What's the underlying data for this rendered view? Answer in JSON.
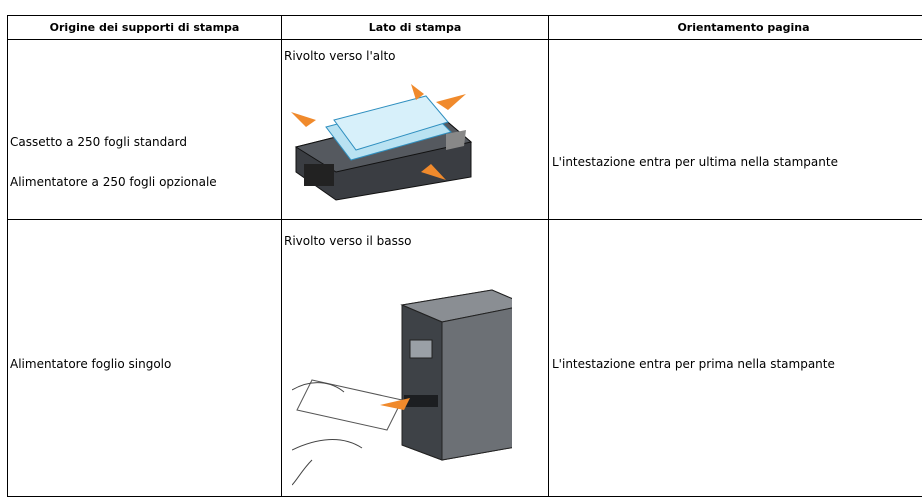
{
  "table": {
    "headers": [
      "Origine dei supporti di stampa",
      "Lato di stampa",
      "Orientamento pagina"
    ],
    "rows": [
      {
        "source": [
          "Cassetto a 250 fogli standard",
          "Alimentatore a 250 fogli opzionale"
        ],
        "side": "Rivolto verso l'alto",
        "orientation": "L'intestazione entra per ultima nella stampante"
      },
      {
        "source": [
          "Alimentatore foglio singolo"
        ],
        "side": "Rivolto verso il basso",
        "orientation": "L'intestazione entra per prima nella stampante"
      }
    ]
  }
}
